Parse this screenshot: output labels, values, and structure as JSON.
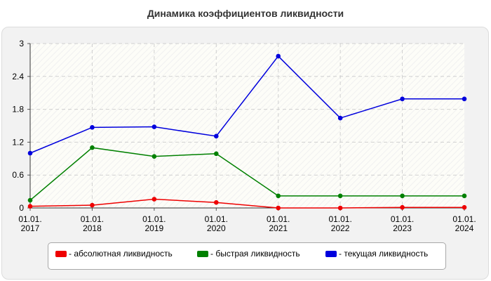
{
  "chart_data": {
    "type": "line",
    "title": "Динамика коэффициентов ликвидности",
    "categories": [
      [
        "01.01.",
        "2017"
      ],
      [
        "01.01.",
        "2018"
      ],
      [
        "01.01.",
        "2019"
      ],
      [
        "01.01.",
        "2020"
      ],
      [
        "01.01.",
        "2021"
      ],
      [
        "01.01.",
        "2022"
      ],
      [
        "01.01.",
        "2023"
      ],
      [
        "01.01.",
        "2024"
      ]
    ],
    "y_ticks": [
      "0",
      "0.6",
      "1.2",
      "1.8",
      "2.4",
      "3"
    ],
    "ylim": [
      0,
      3
    ],
    "grid": true,
    "legend_position": "bottom",
    "series": [
      {
        "name": "абсолютная ликвидность",
        "color": "#ee0000",
        "values": [
          0.03,
          0.05,
          0.16,
          0.1,
          0.0,
          0.0,
          0.01,
          0.01
        ]
      },
      {
        "name": "быстрая ликвидность",
        "color": "#008000",
        "values": [
          0.14,
          1.1,
          0.94,
          0.99,
          0.22,
          0.22,
          0.22,
          0.22
        ]
      },
      {
        "name": "текущая ликвидность",
        "color": "#0000dd",
        "values": [
          1.0,
          1.47,
          1.48,
          1.31,
          2.77,
          1.64,
          1.99,
          1.99
        ]
      }
    ]
  },
  "legend": {
    "items": [
      {
        "label": "- абсолютная ликвидность",
        "color": "#ee0000"
      },
      {
        "label": "- быстрая ликвидность",
        "color": "#008000"
      },
      {
        "label": "- текущая ликвидность",
        "color": "#0000dd"
      }
    ]
  }
}
